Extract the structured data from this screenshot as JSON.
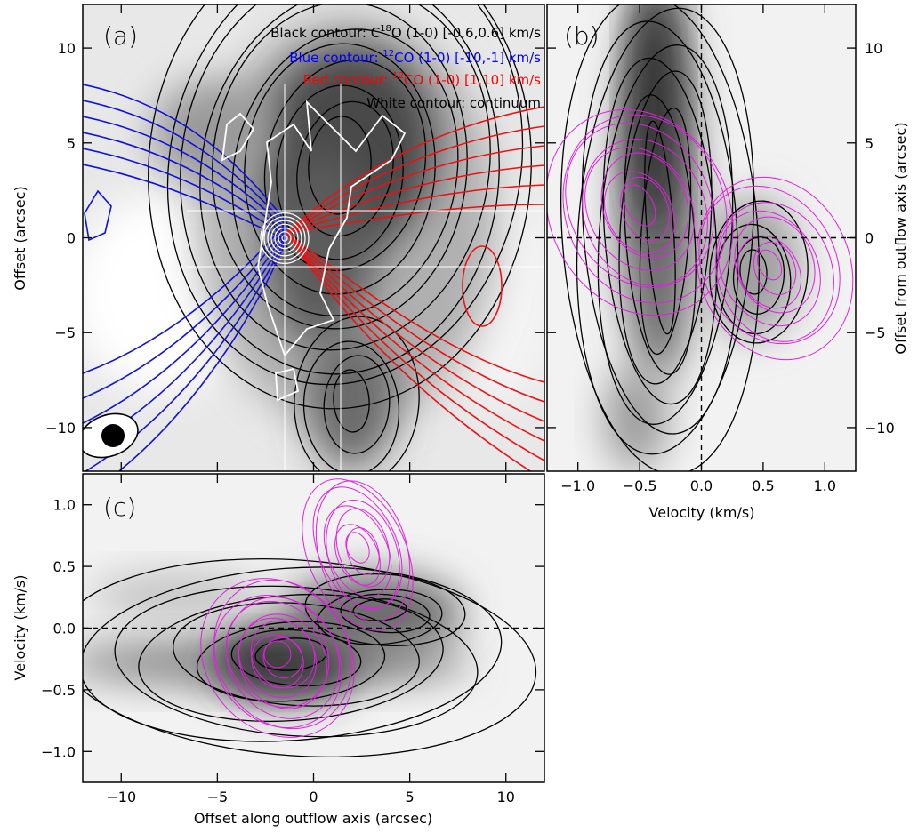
{
  "chart_data": [
    {
      "type": "contour",
      "panel_label": "(a)",
      "ylabel": "Offset (arcsec)",
      "ylim": [
        -12.3,
        12.3
      ],
      "yticks": [
        {
          "value": -10,
          "label": "−10"
        },
        {
          "value": -5,
          "label": "−5"
        },
        0,
        5,
        10
      ],
      "annotations": [
        {
          "color": "#000000",
          "parts": [
            "Black contour: C",
            "18",
            "O (1-0) [-0.6,0.6] km/s"
          ]
        },
        {
          "color": "#0000ff",
          "parts": [
            "Blue contour: ",
            "12",
            "CO (1-0) [-10,-1] km/s"
          ]
        },
        {
          "color": "#ff0000",
          "parts": [
            "Red contour: ",
            "12",
            "CO (1-0) [1,10] km/s"
          ]
        },
        {
          "color": "#000000",
          "parts": [
            "White contour: continuum"
          ]
        }
      ]
    },
    {
      "type": "contour",
      "panel_label": "(b)",
      "xlabel": "Velocity (km/s)",
      "ylabel": "Offset from outflow axis (arcsec)",
      "xlim": [
        -1.25,
        1.25
      ],
      "xticks": [
        {
          "value": -1,
          "label": "−1.0"
        },
        {
          "value": -0.5,
          "label": "−0.5"
        },
        {
          "value": 0,
          "label": "0.0"
        },
        {
          "value": 0.5,
          "label": "0.5"
        },
        {
          "value": 1,
          "label": "1.0"
        }
      ],
      "ylim": [
        -12.3,
        12.3
      ],
      "yticks": [
        {
          "value": -10,
          "label": "−10"
        },
        {
          "value": -5,
          "label": "−5"
        },
        0,
        5,
        10
      ]
    },
    {
      "type": "contour",
      "panel_label": "(c)",
      "xlabel": "Offset along outflow axis (arcsec)",
      "ylabel": "Velocity (km/s)",
      "xlim": [
        -12,
        12
      ],
      "xticks": [
        {
          "value": -10,
          "label": "−10"
        },
        {
          "value": -5,
          "label": "−5"
        },
        0,
        5,
        10
      ],
      "ylim": [
        -1.25,
        1.25
      ],
      "yticks": [
        {
          "value": -1,
          "label": "−1.0"
        },
        {
          "value": -0.5,
          "label": "−0.5"
        },
        {
          "value": 0,
          "label": "0.0"
        },
        {
          "value": 0.5,
          "label": "0.5"
        },
        {
          "value": 1,
          "label": "1.0"
        }
      ]
    }
  ]
}
